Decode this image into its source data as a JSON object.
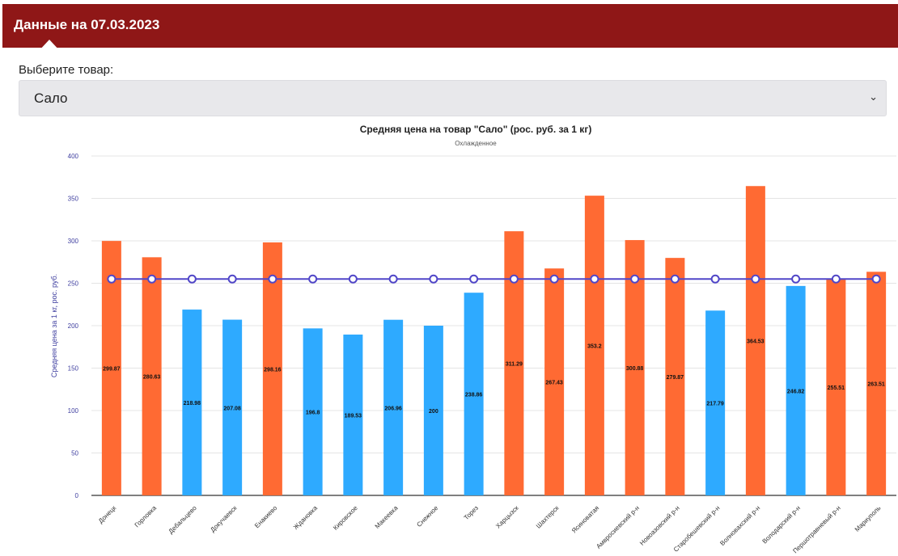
{
  "header": {
    "title": "Данные на 07.03.2023"
  },
  "selector": {
    "label": "Выберите товар:",
    "value": "Сало",
    "chevron_icon": "chevron-down-icon"
  },
  "chart_data": {
    "type": "bar",
    "title": "Средняя цена на товар \"Сало\" (рос. руб. за 1 кг)",
    "subtitle": "Охлажденное",
    "ylabel": "Средняя цена за 1 кг, рос. руб.",
    "xlabel": "",
    "ylim": [
      0,
      400
    ],
    "yticks": [
      0,
      50,
      100,
      150,
      200,
      250,
      300,
      350,
      400
    ],
    "grid": true,
    "categories": [
      "Донецк",
      "Горловка",
      "Дебальцево",
      "Докучаевск",
      "Енакиево",
      "Ждановка",
      "Кировское",
      "Макеевка",
      "Снежное",
      "Торез",
      "Харцызск",
      "Шахтерск",
      "Ясиноватая",
      "Амвросиевский р-н",
      "Новоазовский р-н",
      "Старобешевский р-н",
      "Волновахский р-н",
      "Володарский р-н",
      "Першотравневый р-н",
      "Мариуполь"
    ],
    "values": [
      299.87,
      280.63,
      218.98,
      207.08,
      298.16,
      196.8,
      189.53,
      206.96,
      200,
      238.86,
      311.29,
      267.43,
      353.2,
      300.88,
      279.87,
      217.79,
      364.53,
      246.82,
      255.51,
      263.51
    ],
    "average_line": 255,
    "colors": {
      "above": "#ff6a33",
      "below": "#2eaaff",
      "line": "#5046c8"
    }
  }
}
